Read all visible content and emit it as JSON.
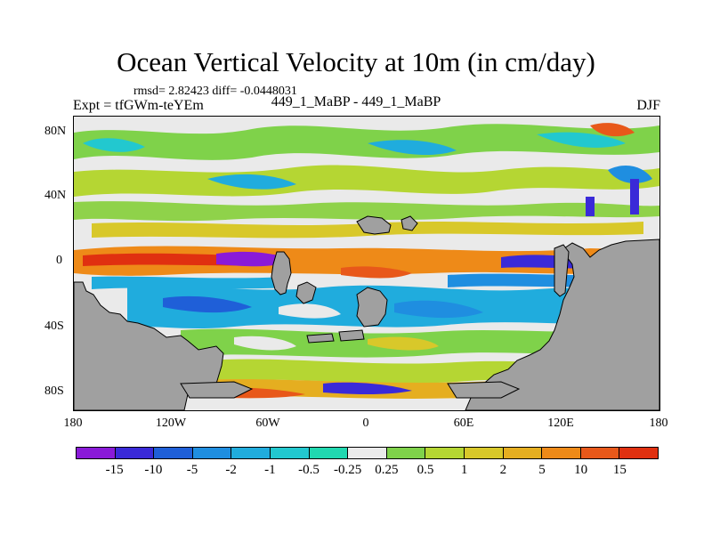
{
  "title": "Ocean Vertical Velocity at 10m (in cm/day)",
  "stats_line": "rmsd= 2.82423 diff= -0.0448031",
  "experiment_line": "Expt = tfGWm-teYEm",
  "difference_label": "449_1_MaBP - 449_1_MaBP",
  "season": "DJF",
  "map": {
    "projection": "cylindrical-equidistant",
    "lon_range": [
      -180,
      180
    ],
    "lat_range": [
      -90,
      90
    ],
    "y_ticks": [
      "80N",
      "40N",
      "0",
      "40S",
      "80S"
    ],
    "x_ticks": [
      "180",
      "120W",
      "60W",
      "0",
      "60E",
      "120E",
      "180"
    ],
    "land_color": "#a0a0a0",
    "field_colors": {
      "neutral": "#eaeaea",
      "weak_pos": "#7fd24a",
      "pos": "#c7d43a",
      "strong_pos": "#f0a020",
      "very_strong_pos": "#e03010",
      "weak_neg": "#3cc0d8",
      "neg": "#1a9ee0",
      "strong_neg": "#3030c8",
      "very_strong_neg": "#8a1ad8"
    }
  },
  "colorbar": {
    "colors": [
      "#8a1ad8",
      "#3a2ad8",
      "#1f5fd8",
      "#1f8ee0",
      "#20acdd",
      "#22c8cf",
      "#20d8b0",
      "#eaeaea",
      "#7fd24a",
      "#b5d633",
      "#d8c82a",
      "#e5ae20",
      "#ee8a18",
      "#e8581a",
      "#e03010"
    ],
    "labels": [
      "-15",
      "-10",
      "-5",
      "-2",
      "-1",
      "-0.5",
      "-0.25",
      "0.25",
      "0.5",
      "1",
      "2",
      "5",
      "10",
      "15"
    ]
  }
}
